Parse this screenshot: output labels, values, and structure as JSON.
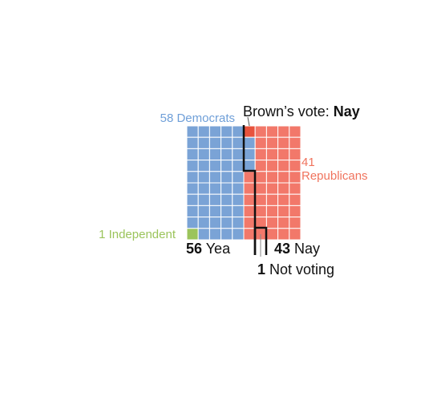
{
  "colors": {
    "democrat": "#7aa3d6",
    "republican": "#f2786a",
    "independent": "#9bc45b",
    "brown": "#e8533d"
  },
  "labels": {
    "democrats": "58 Democrats",
    "republicans_count": "41",
    "republicans_word": "Republicans",
    "independent": "1 Independent",
    "brown_prefix": "Brown’s vote: ",
    "brown_vote": "Nay",
    "yea_count": "56",
    "yea_word": " Yea",
    "nay_count": "43",
    "nay_word": " Nay",
    "not_voting_count": "1",
    "not_voting_word": " Not voting"
  },
  "grid": {
    "columns": 10,
    "rows": 10,
    "democrats": 58,
    "republicans": 41,
    "independents": 1,
    "yea": 56,
    "nay": 43,
    "not_voting": 1
  }
}
